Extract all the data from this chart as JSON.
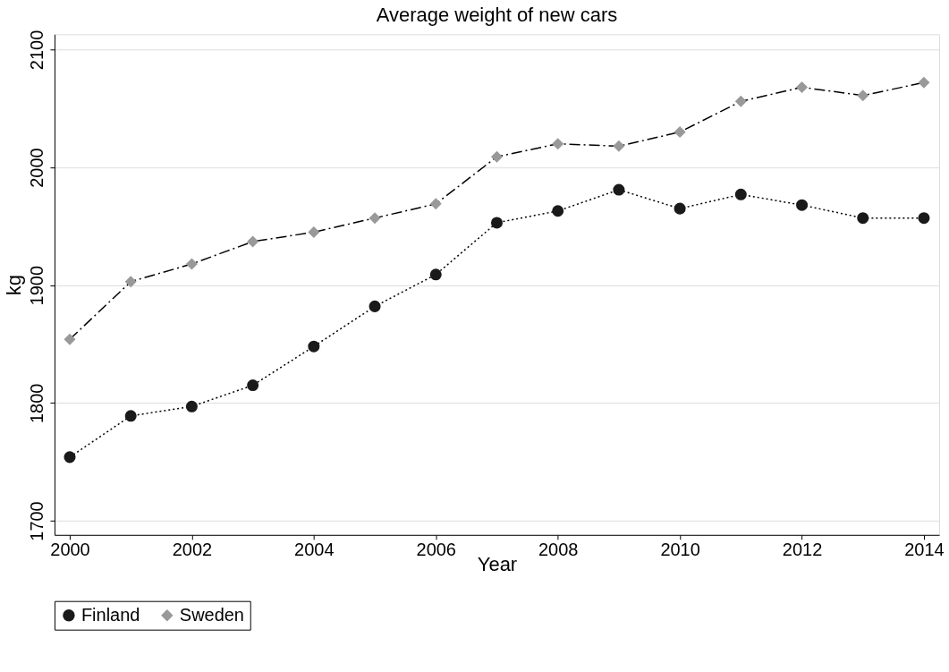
{
  "chart_data": {
    "type": "line",
    "title": "Average weight of new cars",
    "xlabel": "Year",
    "ylabel": "kg",
    "x": [
      2000,
      2001,
      2002,
      2003,
      2004,
      2005,
      2006,
      2007,
      2008,
      2009,
      2010,
      2011,
      2012,
      2013,
      2014
    ],
    "series": [
      {
        "name": "Finland",
        "color": "#1a1a1a",
        "marker": "circle",
        "line_style": "dotted",
        "values": [
          1754,
          1789,
          1797,
          1815,
          1848,
          1882,
          1909,
          1953,
          1963,
          1981,
          1965,
          1977,
          1968,
          1957,
          1957
        ]
      },
      {
        "name": "Sweden",
        "color": "#999999",
        "marker": "diamond",
        "line_style": "dashdot",
        "values": [
          1854,
          1903,
          1918,
          1937,
          1945,
          1957,
          1969,
          2009,
          2020,
          2018,
          2030,
          2056,
          2068,
          2061,
          2072
        ]
      }
    ],
    "xlim": [
      1999.75,
      2014.25
    ],
    "xticks": [
      2000,
      2002,
      2004,
      2006,
      2008,
      2010,
      2012,
      2014
    ],
    "ylim": [
      1688,
      2113
    ],
    "yticks": [
      1700,
      1800,
      1900,
      2000,
      2100
    ],
    "grid": "y",
    "legend": "bottom"
  }
}
